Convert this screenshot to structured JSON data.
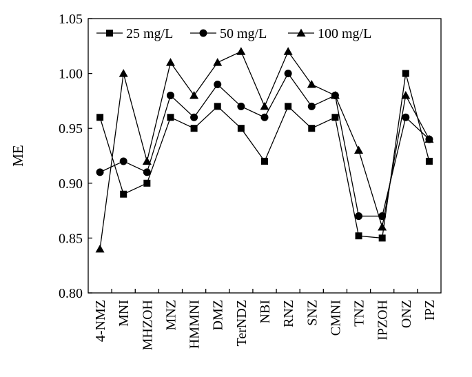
{
  "chart_data": {
    "type": "line",
    "title": "",
    "xlabel": "",
    "ylabel": "ME",
    "ylim": [
      0.8,
      1.05
    ],
    "yticks": [
      "0.80",
      "0.85",
      "0.90",
      "0.95",
      "1.00",
      "1.05"
    ],
    "grid": false,
    "legend_position": "top-left",
    "categories": [
      "4-NMZ",
      "MNI",
      "MHZOH",
      "MNZ",
      "HMMNI",
      "DMZ",
      "TerNDZ",
      "NBI",
      "RNZ",
      "SNZ",
      "CMNI",
      "TNZ",
      "IPZOH",
      "ONZ",
      "IPZ"
    ],
    "series": [
      {
        "name": "25 mg/L",
        "marker": "square",
        "values": [
          0.96,
          0.89,
          0.9,
          0.96,
          0.95,
          0.97,
          0.95,
          0.92,
          0.97,
          0.95,
          0.96,
          0.852,
          0.85,
          1.0,
          0.92
        ]
      },
      {
        "name": "50 mg/L",
        "marker": "circle",
        "values": [
          0.91,
          0.92,
          0.91,
          0.98,
          0.96,
          0.99,
          0.97,
          0.96,
          1.0,
          0.97,
          0.98,
          0.87,
          0.87,
          0.96,
          0.94
        ]
      },
      {
        "name": "100 mg/L",
        "marker": "triangle",
        "values": [
          0.84,
          1.0,
          0.92,
          1.01,
          0.98,
          1.01,
          1.02,
          0.97,
          1.02,
          0.99,
          0.98,
          0.93,
          0.86,
          0.98,
          0.94
        ]
      }
    ]
  }
}
